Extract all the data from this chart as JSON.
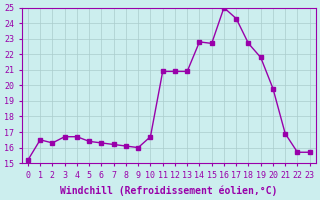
{
  "x": [
    0,
    1,
    2,
    3,
    4,
    5,
    6,
    7,
    8,
    9,
    10,
    11,
    12,
    13,
    14,
    15,
    16,
    17,
    18,
    19,
    20,
    21,
    22,
    23
  ],
  "y": [
    15.2,
    16.5,
    16.3,
    16.7,
    16.7,
    16.4,
    16.3,
    16.2,
    16.1,
    16.0,
    16.7,
    20.9,
    20.9,
    20.9,
    22.8,
    22.7,
    25.0,
    24.3,
    22.7,
    21.8,
    19.8,
    16.9,
    15.7,
    15.7
  ],
  "line_color": "#9900aa",
  "marker": "s",
  "marker_size": 3,
  "bg_color": "#cceeee",
  "grid_color": "#aacccc",
  "xlabel": "Windchill (Refroidissement éolien,°C)",
  "ylim": [
    15,
    25
  ],
  "xlim_min": -0.5,
  "xlim_max": 23.5,
  "yticks": [
    15,
    16,
    17,
    18,
    19,
    20,
    21,
    22,
    23,
    24,
    25
  ],
  "xticks": [
    0,
    1,
    2,
    3,
    4,
    5,
    6,
    7,
    8,
    9,
    10,
    11,
    12,
    13,
    14,
    15,
    16,
    17,
    18,
    19,
    20,
    21,
    22,
    23
  ],
  "title_fontsize": 7,
  "tick_fontsize": 6
}
